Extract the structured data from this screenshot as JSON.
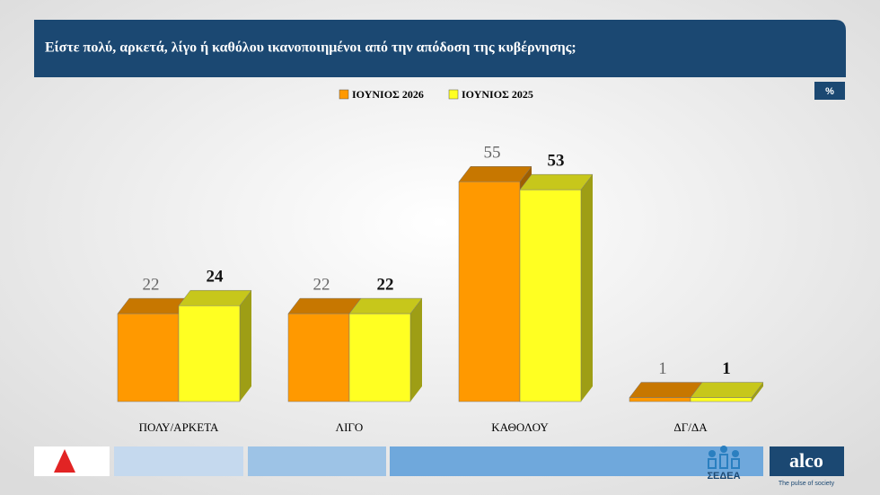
{
  "chart_data": {
    "type": "bar3d",
    "title": "Είστε πολύ, αρκετά, λίγο ή καθόλου ικανοποιημένοι από την  απόδοση της κυβέρνησης;",
    "unit": "%",
    "categories": [
      "ΠΟΛΥ/ΑΡΚΕΤΑ",
      "ΛΙΓΟ",
      "ΚΑΘΟΛΟΥ",
      "ΔΓ/ΔΑ"
    ],
    "series": [
      {
        "name": "ΙΟΥΝΙΟΣ 2026",
        "color": "#ff9900",
        "values": [
          22,
          22,
          55,
          1
        ]
      },
      {
        "name": "ΙΟΥΝΙΟΣ 2025",
        "color": "#ffff22",
        "values": [
          24,
          22,
          53,
          1
        ]
      }
    ]
  },
  "footer": {
    "sedea": "ΣΕΔΕΑ",
    "alco": "alco",
    "tagline": "The pulse of society"
  }
}
